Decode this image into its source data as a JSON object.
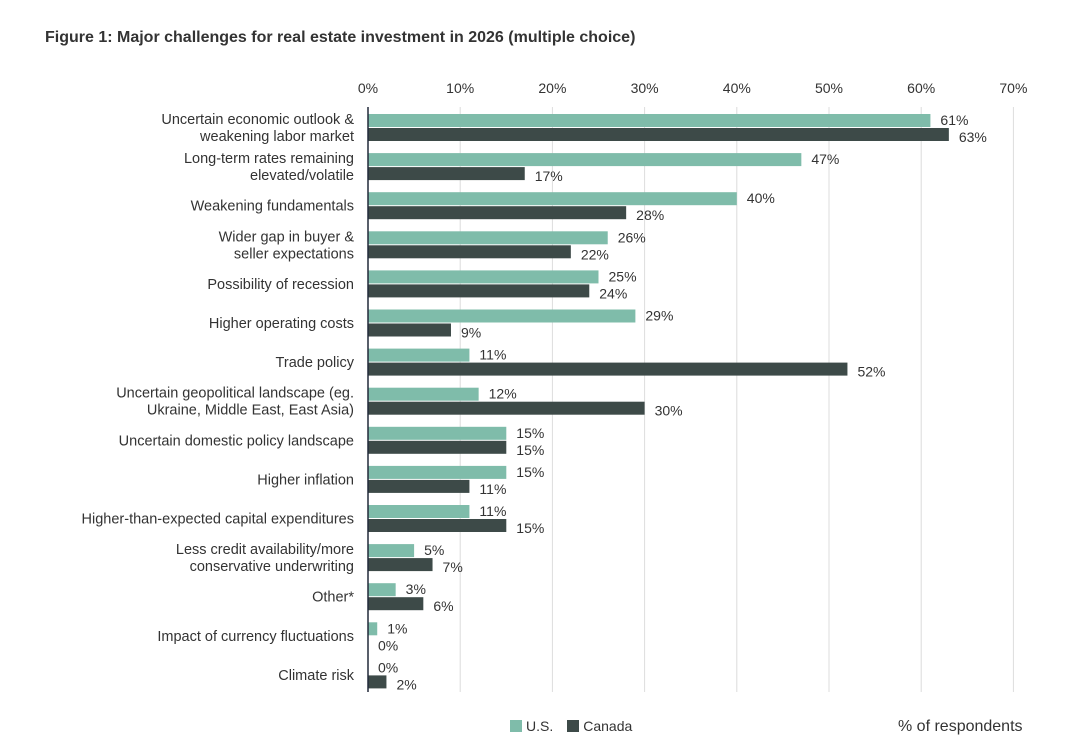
{
  "page": {
    "title": "Figure 1: Major challenges for real estate investment in 2026 (multiple choice)",
    "units_label": "% of respondents"
  },
  "colors": {
    "us": "#7fbcaa",
    "canada": "#3d4a48",
    "grid": "#dcdcdc",
    "axis": "#222a3a"
  },
  "chart_data": {
    "type": "bar",
    "orientation": "horizontal",
    "title": "Figure 1: Major challenges for real estate investment in 2026 (multiple choice)",
    "xlabel": "% of respondents",
    "ylabel": "",
    "xlim": [
      0,
      70
    ],
    "xticks": [
      0,
      10,
      20,
      30,
      40,
      50,
      60,
      70
    ],
    "xtick_labels": [
      "0%",
      "10%",
      "20%",
      "30%",
      "40%",
      "50%",
      "60%",
      "70%"
    ],
    "grid": true,
    "legend_position": "bottom",
    "categories": [
      [
        "Uncertain economic outlook &",
        "weakening labor market"
      ],
      [
        "Long-term rates remaining",
        "elevated/volatile"
      ],
      [
        "Weakening fundamentals"
      ],
      [
        "Wider gap in buyer &",
        "seller expectations"
      ],
      [
        "Possibility of recession"
      ],
      [
        "Higher operating costs"
      ],
      [
        "Trade policy"
      ],
      [
        "Uncertain geopolitical landscape (eg.",
        "Ukraine, Middle East, East Asia)"
      ],
      [
        "Uncertain domestic policy landscape"
      ],
      [
        "Higher inflation"
      ],
      [
        "Higher-than-expected capital expenditures"
      ],
      [
        "Less credit availability/more",
        "conservative underwriting"
      ],
      [
        "Other*"
      ],
      [
        "Impact of currency fluctuations"
      ],
      [
        "Climate risk"
      ]
    ],
    "series": [
      {
        "name": "U.S.",
        "values": [
          61,
          47,
          40,
          26,
          25,
          29,
          11,
          12,
          15,
          15,
          11,
          5,
          3,
          1,
          0
        ],
        "labels": [
          "61%",
          "47%",
          "40%",
          "26%",
          "25%",
          "29%",
          "11%",
          "12%",
          "15%",
          "15%",
          "11%",
          "5%",
          "3%",
          "1%",
          "0%"
        ]
      },
      {
        "name": "Canada",
        "values": [
          63,
          17,
          28,
          22,
          24,
          9,
          52,
          30,
          15,
          11,
          15,
          7,
          6,
          0,
          2
        ],
        "labels": [
          "63%",
          "17%",
          "28%",
          "22%",
          "24%",
          "9%",
          "52%",
          "30%",
          "15%",
          "11%",
          "15%",
          "7%",
          "6%",
          "0%",
          "2%"
        ]
      }
    ]
  }
}
